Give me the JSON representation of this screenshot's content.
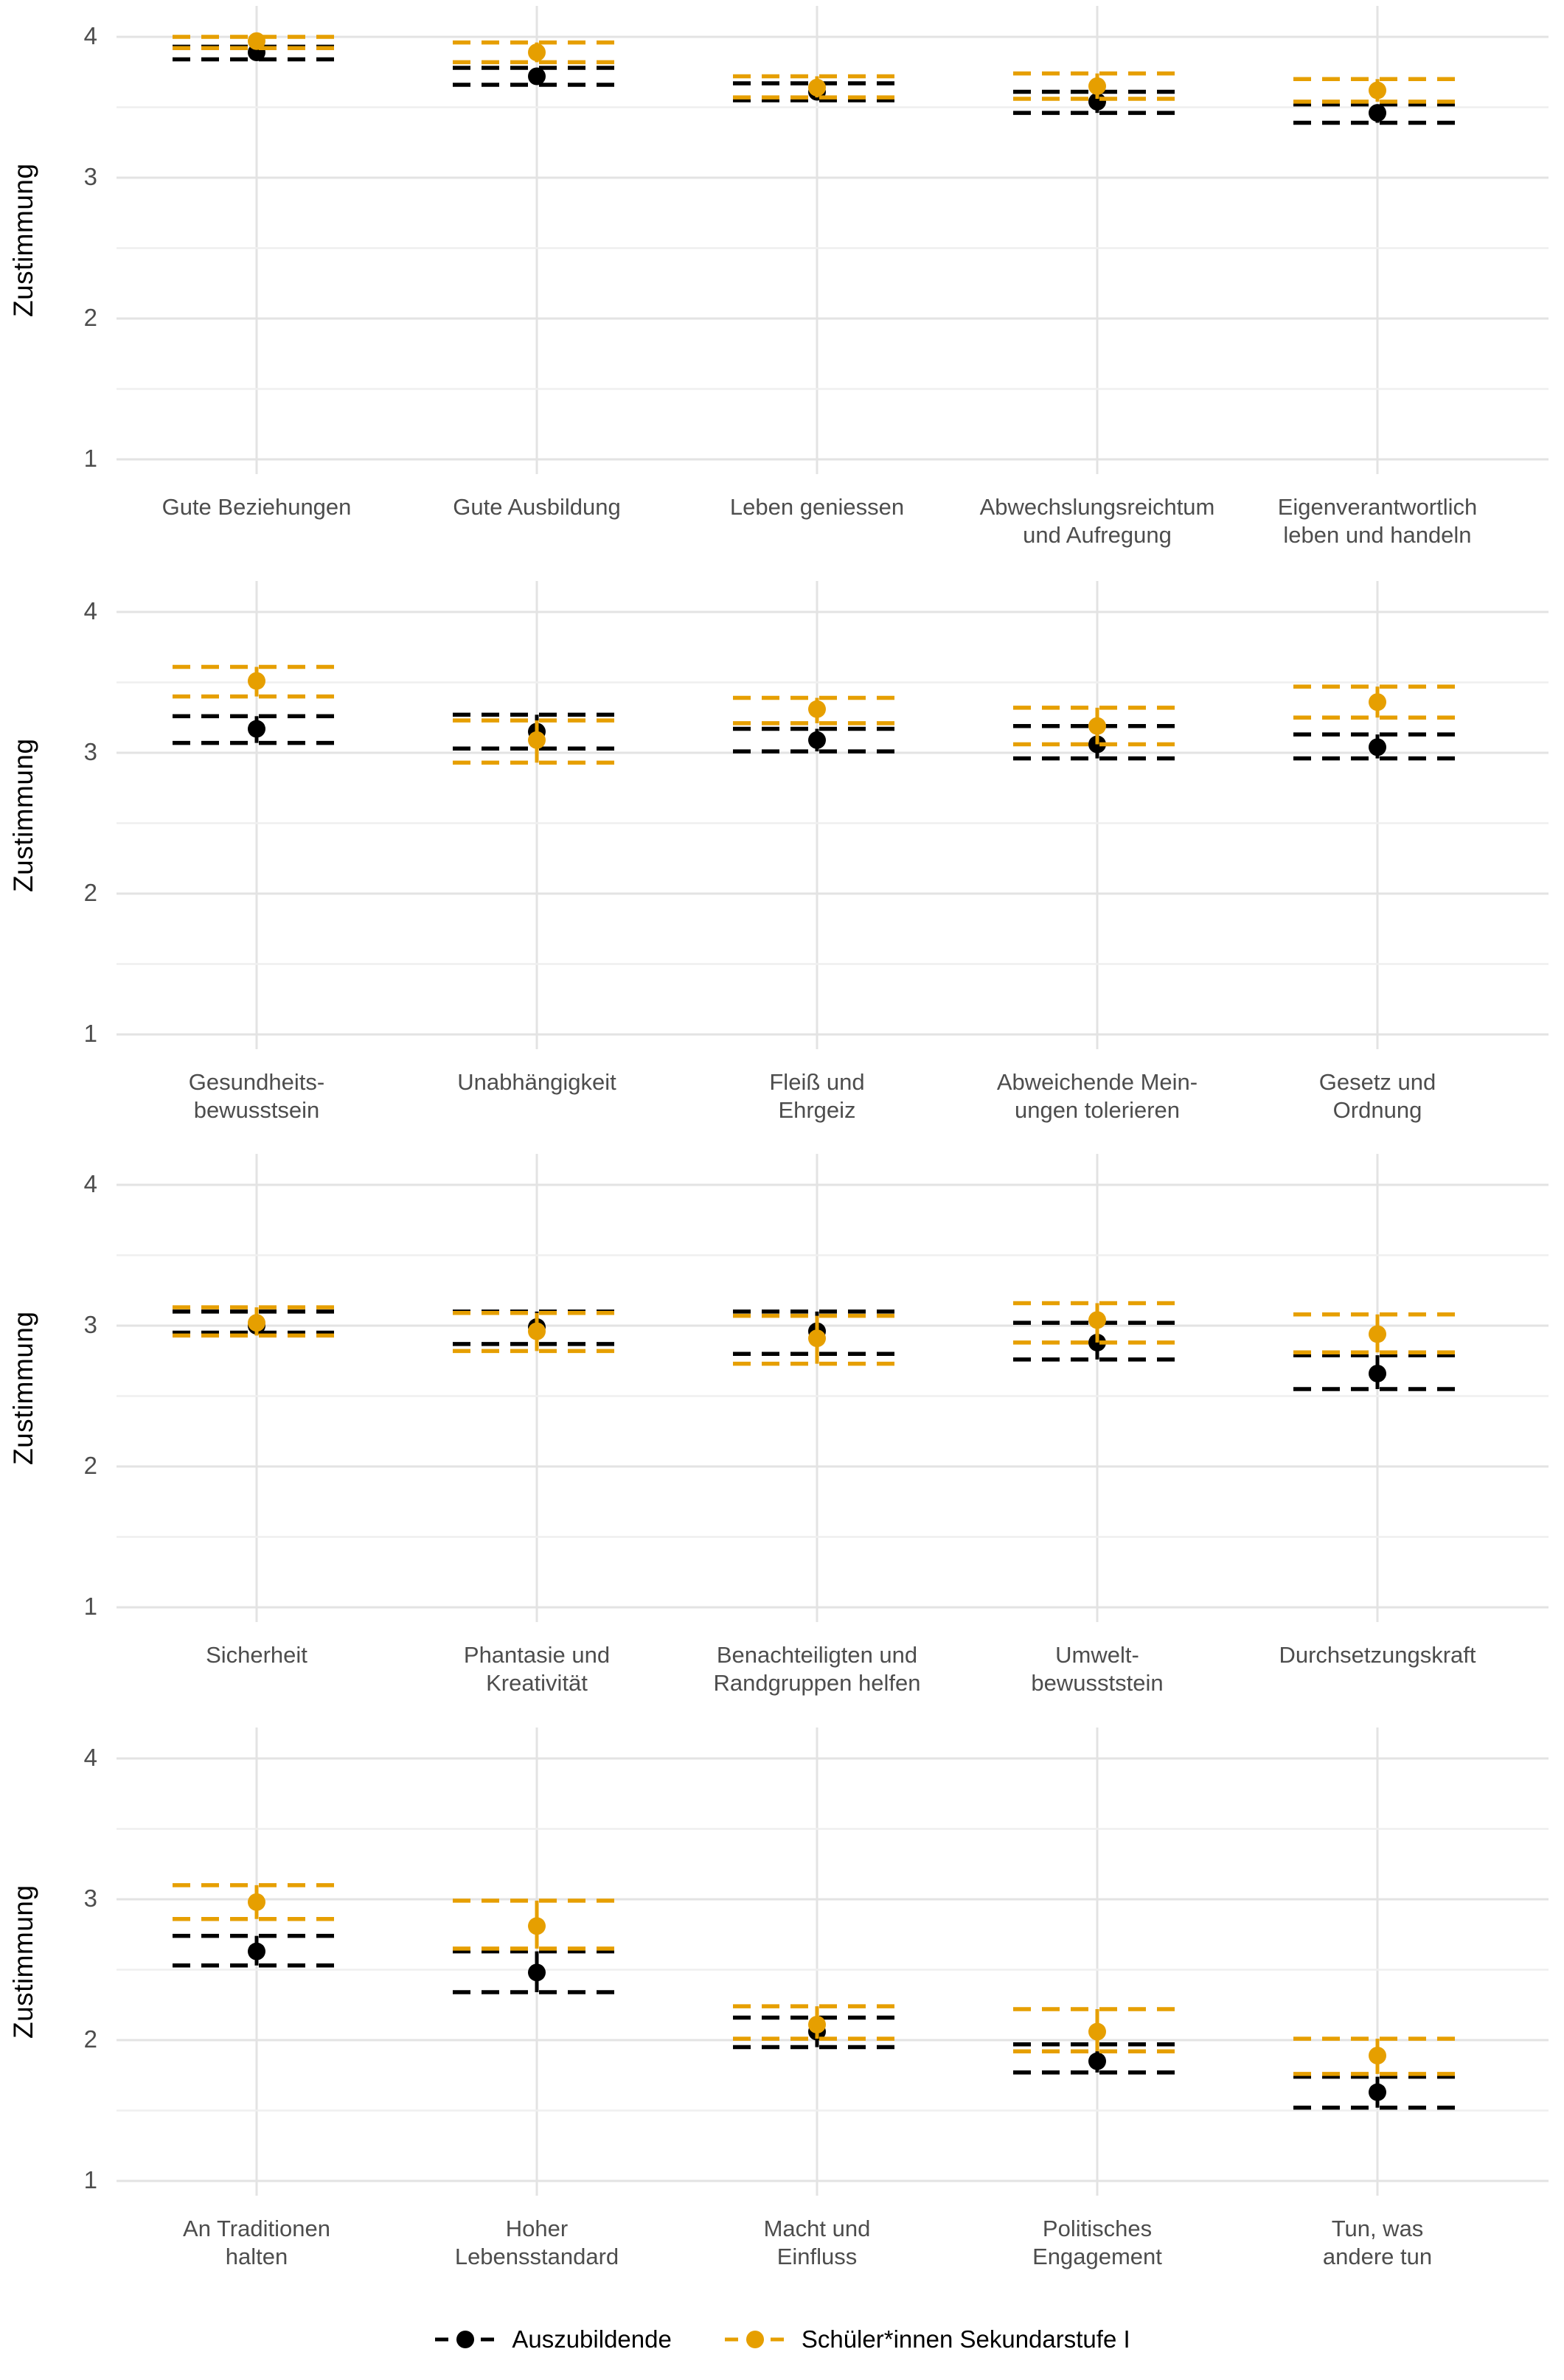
{
  "chart_data": {
    "type": "pointrange",
    "title": "",
    "xlabel": "",
    "ylabel": "Zustimmung",
    "ylim": [
      1,
      4
    ],
    "yticks": [
      4,
      3,
      2,
      1
    ],
    "y_minor_gridlines": [
      3.5,
      2.5,
      1.5
    ],
    "grid": "on",
    "legend_position": "bottom",
    "interval_style": "dashed horizontal bounds with solid vertical connector and mean point",
    "series_meta": [
      {
        "name": "Auszubildende",
        "color": "#000000"
      },
      {
        "name": "Schüler*innen Sekundarstufe I",
        "color": "#E69F00"
      }
    ],
    "panels": [
      {
        "categories": [
          [
            "Gute Beziehungen"
          ],
          [
            "Gute Ausbildung"
          ],
          [
            "Leben geniessen"
          ],
          [
            "Abwechslungsreichtum",
            "und Aufregung"
          ],
          [
            "Eigenverantwortlich",
            "leben und handeln"
          ]
        ],
        "series": [
          {
            "name": "Auszubildende",
            "values": [
              {
                "mean": 3.89,
                "lo": 3.84,
                "hi": 3.93
              },
              {
                "mean": 3.72,
                "lo": 3.66,
                "hi": 3.78
              },
              {
                "mean": 3.61,
                "lo": 3.55,
                "hi": 3.67
              },
              {
                "mean": 3.54,
                "lo": 3.46,
                "hi": 3.61
              },
              {
                "mean": 3.46,
                "lo": 3.39,
                "hi": 3.52
              }
            ]
          },
          {
            "name": "Schüler*innen Sekundarstufe I",
            "values": [
              {
                "mean": 3.97,
                "lo": 3.92,
                "hi": 4.0
              },
              {
                "mean": 3.89,
                "lo": 3.82,
                "hi": 3.96
              },
              {
                "mean": 3.64,
                "lo": 3.57,
                "hi": 3.72
              },
              {
                "mean": 3.65,
                "lo": 3.56,
                "hi": 3.74
              },
              {
                "mean": 3.62,
                "lo": 3.54,
                "hi": 3.7
              }
            ]
          }
        ]
      },
      {
        "categories": [
          [
            "Gesundheits-",
            "bewusstsein"
          ],
          [
            "Unabhängigkeit"
          ],
          [
            "Fleiß und",
            "Ehrgeiz"
          ],
          [
            "Abweichende Mein-",
            "ungen tolerieren"
          ],
          [
            "Gesetz und",
            "Ordnung"
          ]
        ],
        "series": [
          {
            "name": "Auszubildende",
            "values": [
              {
                "mean": 3.17,
                "lo": 3.07,
                "hi": 3.26
              },
              {
                "mean": 3.15,
                "lo": 3.03,
                "hi": 3.27
              },
              {
                "mean": 3.09,
                "lo": 3.01,
                "hi": 3.17
              },
              {
                "mean": 3.06,
                "lo": 2.96,
                "hi": 3.19
              },
              {
                "mean": 3.04,
                "lo": 2.96,
                "hi": 3.13
              }
            ]
          },
          {
            "name": "Schüler*innen Sekundarstufe I",
            "values": [
              {
                "mean": 3.51,
                "lo": 3.4,
                "hi": 3.61
              },
              {
                "mean": 3.09,
                "lo": 2.93,
                "hi": 3.23
              },
              {
                "mean": 3.31,
                "lo": 3.21,
                "hi": 3.39
              },
              {
                "mean": 3.19,
                "lo": 3.06,
                "hi": 3.32
              },
              {
                "mean": 3.36,
                "lo": 3.25,
                "hi": 3.47
              }
            ]
          }
        ]
      },
      {
        "categories": [
          [
            "Sicherheit"
          ],
          [
            "Phantasie und",
            "Kreativität"
          ],
          [
            "Benachteiligten und",
            "Randgruppen helfen"
          ],
          [
            "Umwelt-",
            "bewusststein"
          ],
          [
            "Durchsetzungskraft"
          ]
        ],
        "series": [
          {
            "name": "Auszubildende",
            "values": [
              {
                "mean": 3.0,
                "lo": 2.95,
                "hi": 3.1
              },
              {
                "mean": 2.99,
                "lo": 2.87,
                "hi": 3.1
              },
              {
                "mean": 2.96,
                "lo": 2.8,
                "hi": 3.1
              },
              {
                "mean": 2.88,
                "lo": 2.76,
                "hi": 3.02
              },
              {
                "mean": 2.66,
                "lo": 2.55,
                "hi": 2.79
              }
            ]
          },
          {
            "name": "Schüler*innen Sekundarstufe I",
            "values": [
              {
                "mean": 3.02,
                "lo": 2.93,
                "hi": 3.13
              },
              {
                "mean": 2.96,
                "lo": 2.82,
                "hi": 3.09
              },
              {
                "mean": 2.91,
                "lo": 2.73,
                "hi": 3.07
              },
              {
                "mean": 3.04,
                "lo": 2.88,
                "hi": 3.16
              },
              {
                "mean": 2.94,
                "lo": 2.81,
                "hi": 3.08
              }
            ]
          }
        ]
      },
      {
        "categories": [
          [
            "An Traditionen",
            "halten"
          ],
          [
            "Hoher",
            "Lebensstandard"
          ],
          [
            "Macht und",
            "Einfluss"
          ],
          [
            "Politisches",
            "Engagement"
          ],
          [
            "Tun, was",
            "andere tun"
          ]
        ],
        "series": [
          {
            "name": "Auszubildende",
            "values": [
              {
                "mean": 2.63,
                "lo": 2.53,
                "hi": 2.74
              },
              {
                "mean": 2.48,
                "lo": 2.34,
                "hi": 2.63
              },
              {
                "mean": 2.06,
                "lo": 1.95,
                "hi": 2.16
              },
              {
                "mean": 1.85,
                "lo": 1.77,
                "hi": 1.97
              },
              {
                "mean": 1.63,
                "lo": 1.52,
                "hi": 1.74
              }
            ]
          },
          {
            "name": "Schüler*innen Sekundarstufe I",
            "values": [
              {
                "mean": 2.98,
                "lo": 2.86,
                "hi": 3.1
              },
              {
                "mean": 2.81,
                "lo": 2.65,
                "hi": 2.99
              },
              {
                "mean": 2.11,
                "lo": 2.01,
                "hi": 2.24
              },
              {
                "mean": 2.06,
                "lo": 1.92,
                "hi": 2.22
              },
              {
                "mean": 1.89,
                "lo": 1.76,
                "hi": 2.01
              }
            ]
          }
        ]
      }
    ]
  },
  "legend": {
    "items": [
      {
        "label": "Auszubildende",
        "color": "#000000"
      },
      {
        "label": "Schüler*innen Sekundarstufe I",
        "color": "#E69F00"
      }
    ]
  },
  "colors": {
    "series_black": "#000000",
    "series_orange": "#E69F00",
    "grid_major": "#e3e3e3",
    "grid_minor": "#efefef",
    "axis_text": "#4d4d4d",
    "background": "#ffffff"
  }
}
